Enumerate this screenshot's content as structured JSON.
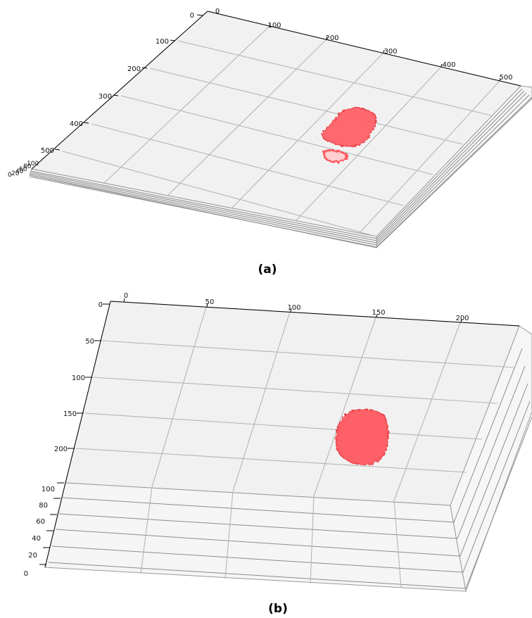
{
  "chart_data": [
    {
      "type": "scatter",
      "panel_label": "(a)",
      "x_ticks": [
        "0",
        "100",
        "200",
        "300",
        "400",
        "500"
      ],
      "y_ticks": [
        "0",
        "100",
        "200",
        "300",
        "400",
        "500"
      ],
      "z_ticks": [
        "0",
        "20",
        "40",
        "60",
        "80",
        "100"
      ],
      "xlim": [
        0,
        512
      ],
      "ylim": [
        0,
        512
      ],
      "zlim": [
        0,
        100
      ],
      "grid": true,
      "series": [
        {
          "color": "#ff5a5f",
          "blobs": [
            {
              "x": [
                330,
                460
              ],
              "y": [
                300,
                400
              ]
            },
            {
              "x": [
                310,
                350
              ],
              "y": [
                440,
                480
              ]
            }
          ]
        }
      ]
    },
    {
      "type": "scatter",
      "panel_label": "(b)",
      "x_ticks": [
        "0",
        "50",
        "100",
        "150",
        "200"
      ],
      "y_ticks": [
        "0",
        "50",
        "100",
        "150",
        "200"
      ],
      "z_ticks": [
        "0",
        "20",
        "40",
        "60",
        "80",
        "100"
      ],
      "xlim": [
        0,
        230
      ],
      "ylim": [
        0,
        230
      ],
      "zlim": [
        0,
        100
      ],
      "grid": true,
      "series": [
        {
          "color": "#ff5a5f",
          "blobs": [
            {
              "x": [
                130,
                168
              ],
              "y": [
                165,
                205
              ]
            }
          ]
        }
      ]
    }
  ]
}
